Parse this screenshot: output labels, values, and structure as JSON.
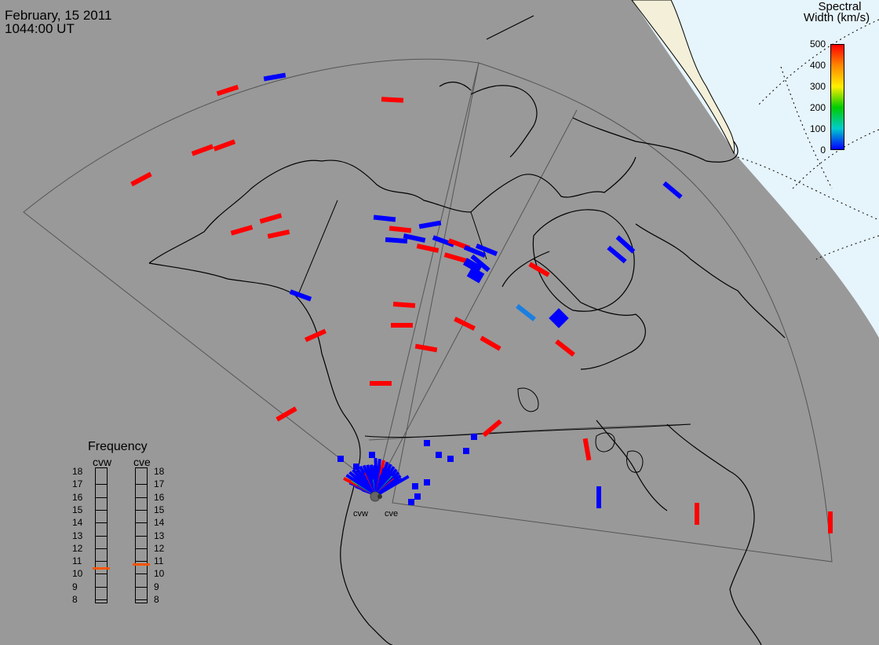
{
  "header": {
    "date": "February, 15 2011",
    "time": "1044:00 UT"
  },
  "colorbar": {
    "title_line1": "Spectral",
    "title_line2": "Width (km/s)",
    "ticks": [
      "500",
      "400",
      "300",
      "200",
      "100",
      "0"
    ],
    "gradient": [
      "#ff0000",
      "#ff8800",
      "#ffee00",
      "#00cc00",
      "#00cccc",
      "#0000ff"
    ]
  },
  "frequency": {
    "title": "Frequency",
    "radars": [
      {
        "code": "cvw",
        "value_mhz": 10.5
      },
      {
        "code": "cve",
        "value_mhz": 10.8
      }
    ],
    "ticks": [
      "18",
      "17",
      "16",
      "15",
      "14",
      "13",
      "12",
      "11",
      "10",
      "9",
      "8"
    ],
    "marker_color": "#ff5500"
  },
  "sites": [
    {
      "code": "cvw"
    },
    {
      "code": "cve"
    }
  ],
  "colors": {
    "background": "#999999",
    "land_line": "#000000",
    "ocean_day": "#e6f4fb",
    "ice": "#f3efd9",
    "fov": "#555555",
    "echo_high": "#ff0000",
    "echo_low": "#0000ff",
    "echo_mid": "#1a7fe0",
    "echo_green": "#00cc44"
  }
}
